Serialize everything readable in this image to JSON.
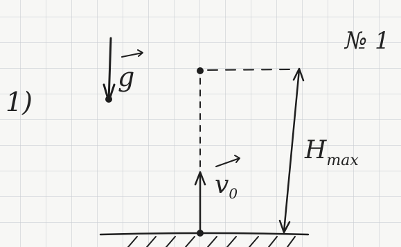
{
  "header": {
    "number": "№ 1"
  },
  "problem": {
    "item": "1)"
  },
  "labels": {
    "gravity": "g",
    "velocity": {
      "symbol": "v",
      "subscript": "0"
    },
    "height": {
      "symbol": "H",
      "subscript": "max"
    }
  }
}
